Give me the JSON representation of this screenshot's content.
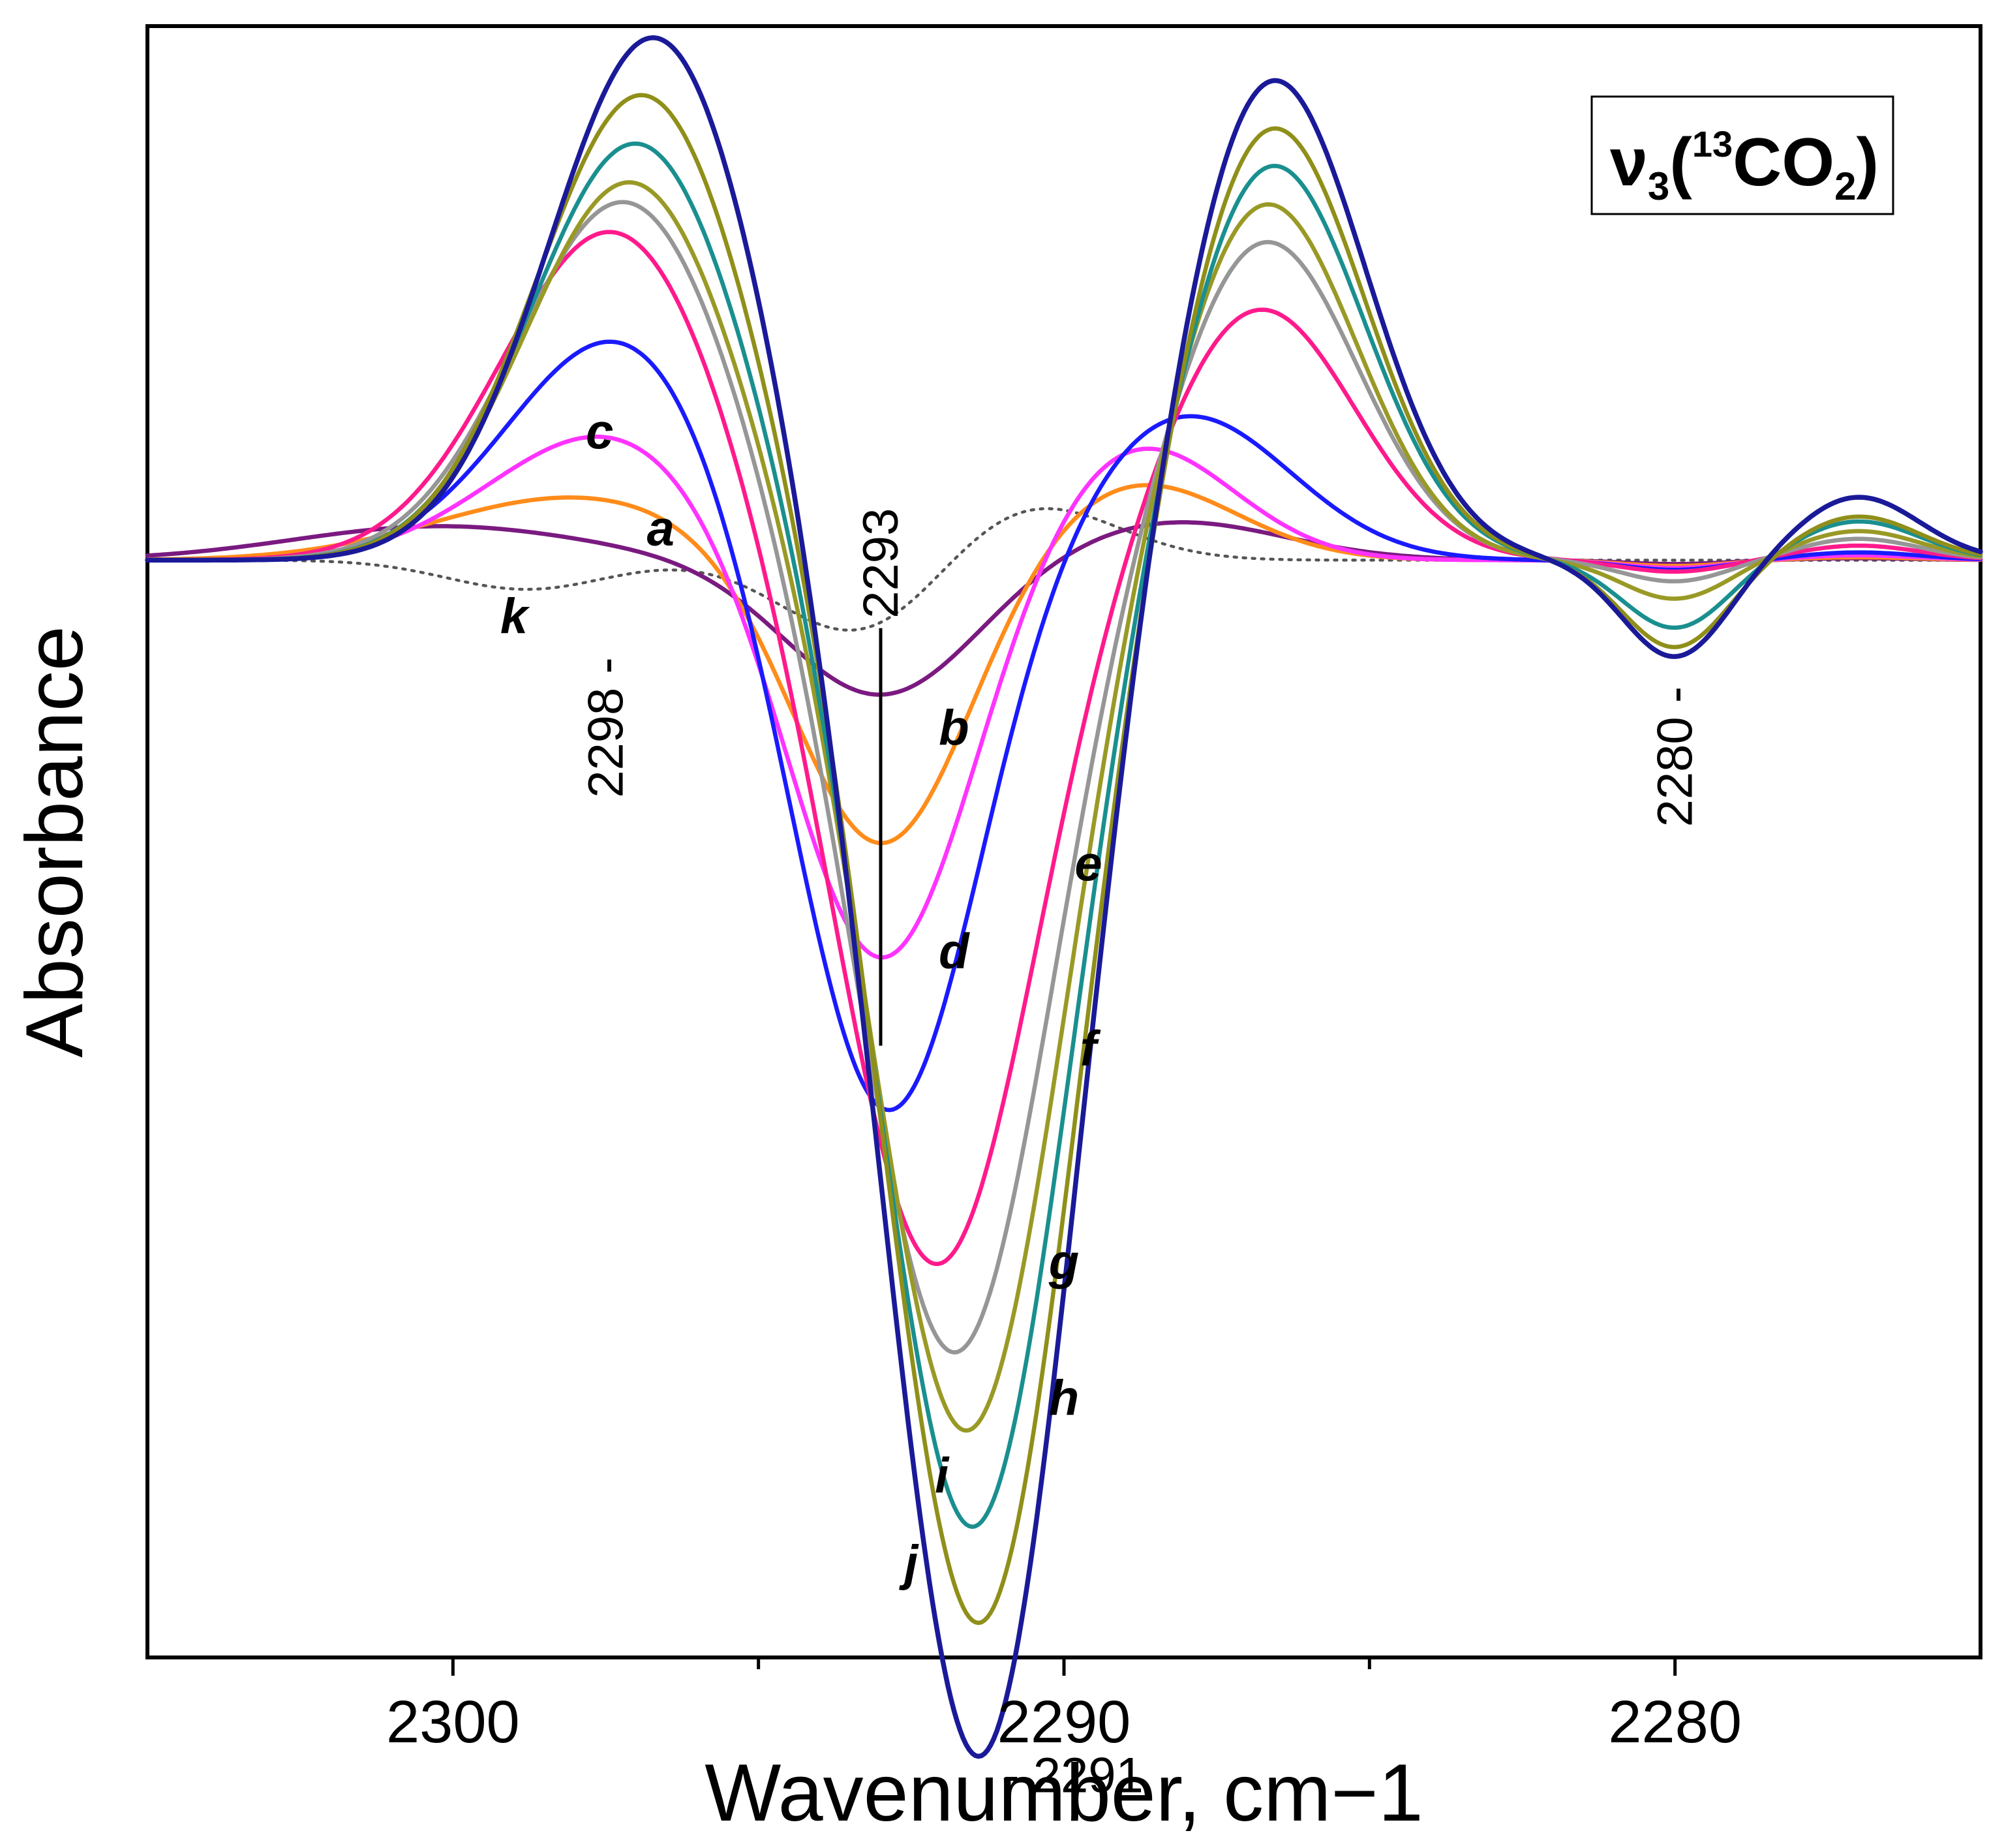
{
  "chart_data": {
    "type": "line",
    "title": "",
    "xlabel": "Wavenumber, cm−1",
    "ylabel": "Absorbance",
    "xlim": [
      2305,
      2275
    ],
    "ylim": [
      -1.13,
      0.55
    ],
    "x_ticks": [
      2300,
      2295,
      2290,
      2285,
      2280
    ],
    "x_tick_labels": [
      "2300",
      "2290",
      "2280"
    ],
    "grid": false,
    "legend": {
      "nu": "ν",
      "sub": "3",
      "open": "(",
      "iso": "13",
      "mol": "CO",
      "molsub": "2",
      "close": ")",
      "placement": "top-right"
    },
    "peak_labels": [
      {
        "text": "2293",
        "x": 2293
      },
      {
        "text": "2298",
        "x": 2297.5
      },
      {
        "text": "2291",
        "x": 2291.4
      },
      {
        "text": "2280",
        "x": 2280
      }
    ],
    "series": [
      {
        "name": "a",
        "color": "#7a1a80",
        "dash": false,
        "width": 6.5,
        "A1": 0.035,
        "c1": 2300.2,
        "s1": 2.4,
        "A2": -0.14,
        "c2": 2293.0,
        "s2": 1.55,
        "A3": 0.04,
        "c3": 2288.2,
        "s3": 1.8,
        "A4": -0.004,
        "A5": 0.002
      },
      {
        "name": "b",
        "color": "#ff8c1a",
        "dash": false,
        "width": 6.5,
        "A1": 0.065,
        "c1": 2298.0,
        "s1": 2.3,
        "A2": -0.3,
        "c2": 2293.0,
        "s2": 1.4,
        "A3": 0.08,
        "c3": 2288.8,
        "s3": 1.6,
        "A4": -0.006,
        "A5": 0.003
      },
      {
        "name": "c",
        "color": "#ff33ff",
        "dash": false,
        "width": 6.5,
        "A1": 0.13,
        "c1": 2297.5,
        "s1": 1.9,
        "A2": -0.42,
        "c2": 2293.0,
        "s2": 1.45,
        "A3": 0.12,
        "c3": 2288.8,
        "s3": 1.55,
        "A4": -0.008,
        "A5": 0.005
      },
      {
        "name": "d",
        "color": "#1a1aff",
        "dash": false,
        "width": 6.5,
        "A1": 0.23,
        "c1": 2297.3,
        "s1": 1.8,
        "A2": -0.58,
        "c2": 2292.9,
        "s2": 1.45,
        "A3": 0.15,
        "c3": 2288.0,
        "s3": 1.7,
        "A4": -0.01,
        "A5": 0.008
      },
      {
        "name": "e",
        "color": "#ff1a8c",
        "dash": false,
        "width": 6.5,
        "A1": 0.34,
        "c1": 2297.4,
        "s1": 1.8,
        "A2": -0.73,
        "c2": 2292.1,
        "s2": 1.55,
        "A3": 0.26,
        "c3": 2286.8,
        "s3": 1.55,
        "A4": -0.012,
        "A5": 0.015
      },
      {
        "name": "f",
        "color": "#969696",
        "dash": false,
        "width": 6.5,
        "A1": 0.37,
        "c1": 2297.2,
        "s1": 1.75,
        "A2": -0.82,
        "c2": 2291.8,
        "s2": 1.5,
        "A3": 0.33,
        "c3": 2286.7,
        "s3": 1.5,
        "A4": -0.022,
        "A5": 0.022
      },
      {
        "name": "g",
        "color": "#999926",
        "dash": false,
        "width": 6.5,
        "A1": 0.39,
        "c1": 2297.1,
        "s1": 1.7,
        "A2": -0.9,
        "c2": 2291.6,
        "s2": 1.48,
        "A3": 0.37,
        "c3": 2286.7,
        "s3": 1.48,
        "A4": -0.04,
        "A5": 0.03
      },
      {
        "name": "h",
        "color": "#1a8f8f",
        "dash": false,
        "width": 6.5,
        "A1": 0.43,
        "c1": 2297.0,
        "s1": 1.72,
        "A2": -1.0,
        "c2": 2291.5,
        "s2": 1.48,
        "A3": 0.41,
        "c3": 2286.6,
        "s3": 1.5,
        "A4": -0.07,
        "A5": 0.04
      },
      {
        "name": "i",
        "color": "#8f8f1a",
        "dash": false,
        "width": 6.5,
        "A1": 0.48,
        "c1": 2296.9,
        "s1": 1.72,
        "A2": -1.1,
        "c2": 2291.4,
        "s2": 1.48,
        "A3": 0.45,
        "c3": 2286.6,
        "s3": 1.5,
        "A4": -0.09,
        "A5": 0.045
      },
      {
        "name": "j",
        "color": "#1a1a99",
        "dash": false,
        "width": 7.5,
        "A1": 0.54,
        "c1": 2296.7,
        "s1": 1.72,
        "A2": -1.24,
        "c2": 2291.4,
        "s2": 1.48,
        "A3": 0.5,
        "c3": 2286.6,
        "s3": 1.52,
        "A4": -0.1,
        "A5": 0.065
      },
      {
        "name": "k",
        "color": "#555555",
        "dash": true,
        "width": 4.5,
        "A1": -0.03,
        "c1": 2298.8,
        "s1": 1.3,
        "A2": -0.08,
        "c2": 2293.3,
        "s2": 1.3,
        "A3": 0.06,
        "c3": 2290.6,
        "s3": 1.4,
        "A4": 0.0,
        "A5": 0.0
      }
    ]
  }
}
